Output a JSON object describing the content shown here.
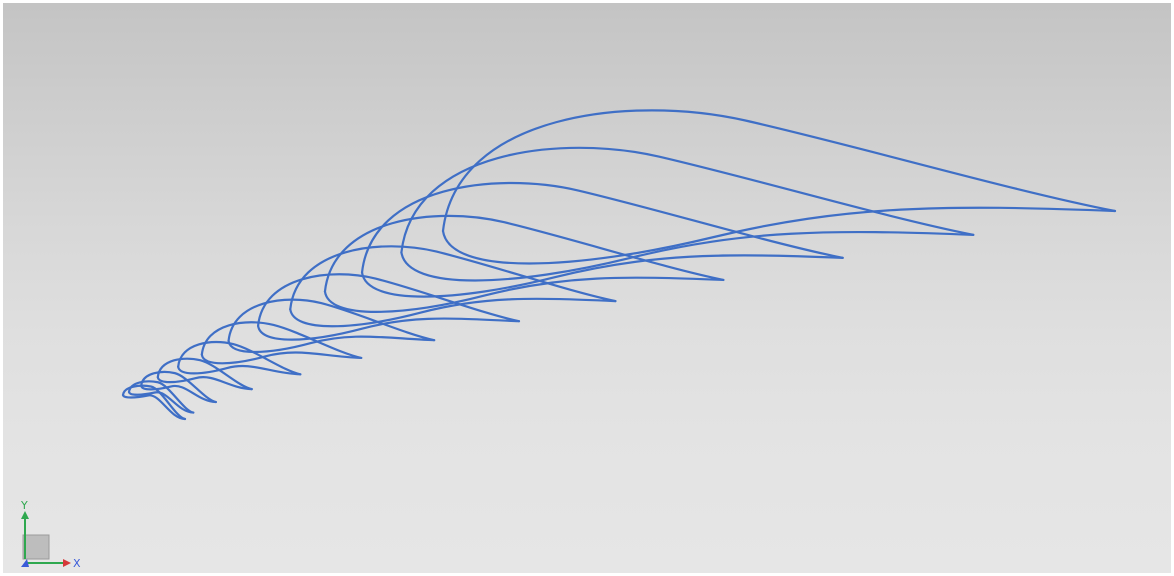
{
  "view": {
    "background_top": "#c4c4c4",
    "background_bottom": "#e6e6e6"
  },
  "geometry": {
    "curve_color": "#3f6fc6",
    "section_count": 13,
    "description_icon": "airfoil-section-curves"
  },
  "triad": {
    "x_label": "X",
    "y_label": "Y",
    "x_color": "#2fa84f",
    "y_color": "#2fa84f",
    "z_color": "#3a5bd9",
    "x_arrow_color": "#d63a3a",
    "cube_color": "#bdbdbd"
  }
}
